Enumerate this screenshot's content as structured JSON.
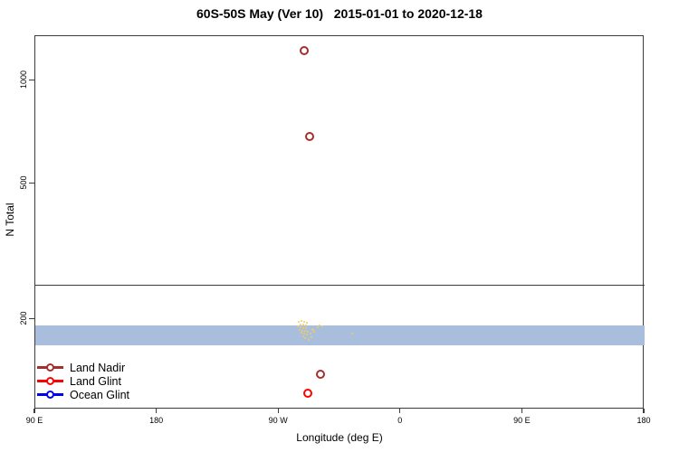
{
  "title": "60S-50S May (Ver 10)   2015-01-01 to 2020-12-18",
  "axes": {
    "x": {
      "label": "Longitude (deg E)",
      "ticks": [
        {
          "lon": 90,
          "label": "90 E"
        },
        {
          "lon": 180,
          "label": "180"
        },
        {
          "lon": 270,
          "label": "90 W"
        },
        {
          "lon": 360,
          "label": "0"
        },
        {
          "lon": 450,
          "label": "90 E"
        },
        {
          "lon": 540,
          "label": "180"
        }
      ]
    },
    "y": {
      "label": "N Total",
      "ticks": [
        {
          "n": 200,
          "label": "200"
        },
        {
          "n": 500,
          "label": "500"
        },
        {
          "n": 1000,
          "label": "1000"
        }
      ]
    }
  },
  "legend": {
    "items": [
      {
        "label": "Land Nadir",
        "color": "#A42F2B"
      },
      {
        "label": "Land Glint",
        "color": "#FF0000"
      },
      {
        "label": "Ocean Glint",
        "color": "#0000EE"
      }
    ]
  },
  "colors": {
    "frame": "#3c3c3c",
    "band": "#A9BEDD",
    "cluster": "#F0CD5F",
    "plot_bg": "#FFFFFF"
  },
  "chart_data": {
    "type": "scatter",
    "title": "60S-50S May (Ver 10)   2015-01-01 to 2020-12-18",
    "xlabel": "Longitude (deg E)",
    "ylabel": "N Total",
    "x_range_degE": [
      90,
      540
    ],
    "y_scale": "log",
    "y_ticks": [
      200,
      500,
      1000
    ],
    "grid": false,
    "legend_position": "bottom-left",
    "series": [
      {
        "name": "Land Nadir",
        "color": "#A42F2B",
        "marker": "open-circle",
        "points": [
          [
            288.6,
            1220
          ],
          [
            292.6,
            685
          ],
          [
            300.6,
            138
          ]
        ]
      },
      {
        "name": "Land Glint",
        "color": "#FF0000",
        "marker": "open-circle",
        "points": [
          [
            291.3,
            121
          ]
        ]
      },
      {
        "name": "Ocean Glint",
        "color": "#0000EE",
        "marker": "open-circle",
        "points": []
      }
    ],
    "reference_line_n": 252,
    "band": {
      "color": "#A9BEDD",
      "n_min": 168,
      "n_max": 192,
      "lon_min": 90,
      "lon_max": 540
    },
    "cluster_points": {
      "color": "#F0CD5F",
      "points": [
        [
          284.6,
          196.5
        ],
        [
          286.6,
          197.7
        ],
        [
          288.6,
          196.5
        ],
        [
          290.6,
          195.3
        ],
        [
          285.9,
          193.0
        ],
        [
          287.9,
          193.0
        ],
        [
          289.9,
          191.8
        ],
        [
          283.9,
          190.6
        ],
        [
          285.9,
          189.5
        ],
        [
          287.9,
          188.3
        ],
        [
          289.9,
          188.3
        ],
        [
          285.3,
          186.0
        ],
        [
          287.3,
          184.9
        ],
        [
          289.3,
          184.9
        ],
        [
          291.3,
          183.8
        ],
        [
          286.6,
          182.7
        ],
        [
          288.6,
          181.6
        ],
        [
          290.6,
          180.4
        ],
        [
          287.9,
          178.3
        ],
        [
          289.3,
          176.1
        ],
        [
          291.9,
          174.0
        ],
        [
          293.9,
          177.2
        ],
        [
          293.3,
          181.6
        ],
        [
          294.6,
          187.2
        ],
        [
          295.9,
          183.8
        ],
        [
          295.3,
          186.0
        ],
        [
          298.6,
          189.5
        ],
        [
          299.9,
          191.8
        ],
        [
          301.9,
          190.6
        ],
        [
          324.0,
          181.6
        ]
      ]
    }
  }
}
